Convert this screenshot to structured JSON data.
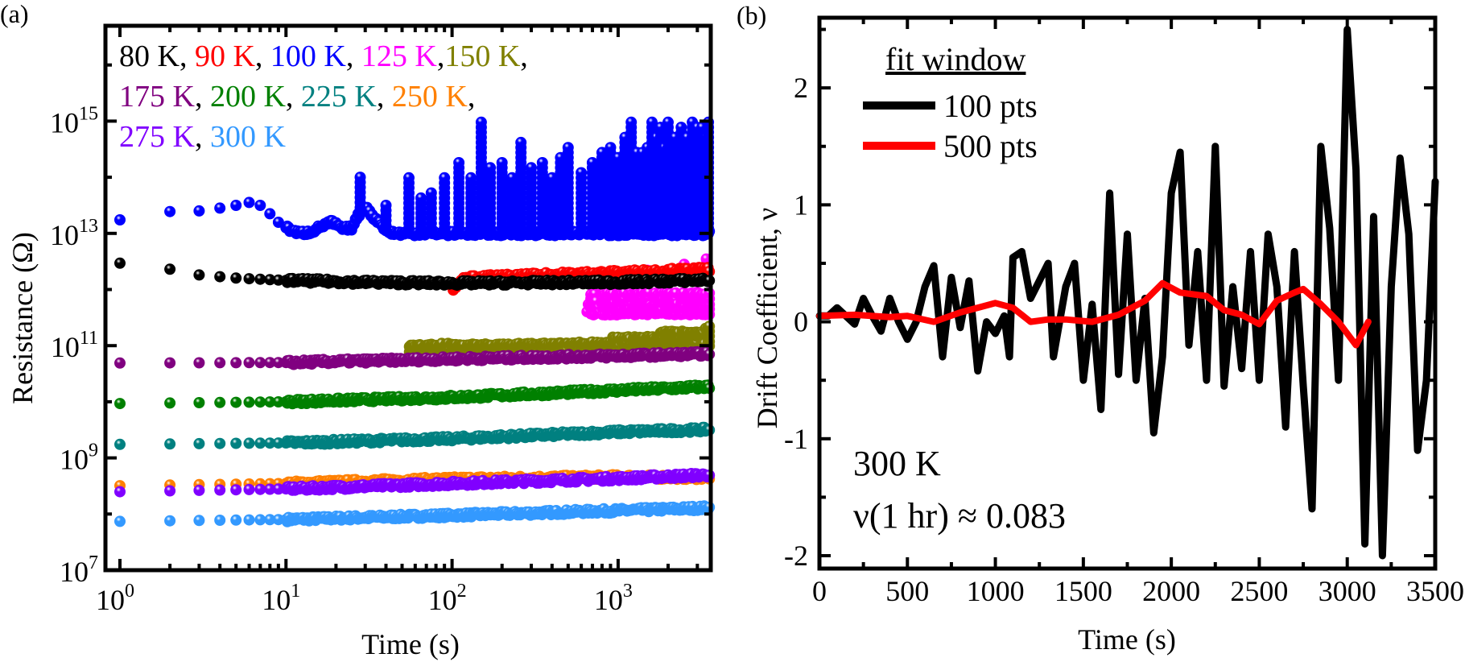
{
  "chart_data": [
    {
      "panel_label": "(a)",
      "type": "scatter",
      "xlabel": "Time (s)",
      "ylabel": "Resistance (Ω)",
      "xscale": "log",
      "yscale": "log",
      "xlim": [
        0.82,
        3630
      ],
      "ylim": [
        10000000.0,
        5e+16
      ],
      "xticks": [
        1,
        10,
        100,
        1000
      ],
      "yticks": [
        10000000.0,
        1000000000.0,
        100000000000.0,
        10000000000000.0,
        1000000000000000.0
      ],
      "grid": false,
      "legend_placement": "top-left",
      "legend_rows": [
        [
          "80 K",
          "90 K",
          "100 K",
          "125 K",
          "150 K"
        ],
        [
          "175 K",
          "200 K",
          "225 K",
          "250 K"
        ],
        [
          "275 K",
          "300 K"
        ]
      ],
      "legend_separator": ",",
      "series": [
        {
          "name": "80 K",
          "color": "#000000",
          "points": [
            [
              1,
              2950000000000.0
            ],
            [
              2,
              2300000000000.0
            ],
            [
              3,
              1820000000000.0
            ],
            [
              5,
              1600000000000.0
            ],
            [
              10,
              1450000000000.0
            ],
            [
              30,
              1350000000000.0
            ],
            [
              100,
              1300000000000.0
            ],
            [
              1000,
              1350000000000.0
            ],
            [
              3600,
              1480000000000.0
            ]
          ]
        },
        {
          "name": "90 K",
          "color": "#ff0000",
          "points": [
            [
              100,
              1000000000000.0
            ],
            [
              120,
              1600000000000.0
            ],
            [
              300,
              1800000000000.0
            ],
            [
              1000,
              2000000000000.0
            ],
            [
              3600,
              2300000000000.0
            ]
          ]
        },
        {
          "name": "100 K",
          "color": "#0000ff",
          "points": [
            [
              1,
              17400000000000.0
            ],
            [
              2,
              24500000000000.0
            ],
            [
              3,
              25100000000000.0
            ],
            [
              4,
              28200000000000.0
            ],
            [
              5,
              31600000000000.0
            ],
            [
              6,
              35500000000000.0
            ],
            [
              7,
              31600000000000.0
            ],
            [
              8,
              22400000000000.0
            ],
            [
              9,
              15800000000000.0
            ],
            [
              10,
              12600000000000.0
            ],
            [
              12,
              10000000000000.0
            ],
            [
              14,
              10500000000000.0
            ],
            [
              17,
              14100000000000.0
            ],
            [
              19,
              15800000000000.0
            ],
            [
              22,
              12000000000000.0
            ],
            [
              25,
              12600000000000.0
            ],
            [
              27,
              20000000000000.0
            ],
            [
              30,
              31600000000000.0
            ],
            [
              33,
              20000000000000.0
            ],
            [
              37,
              15800000000000.0
            ],
            [
              40,
              11200000000000.0
            ],
            [
              45,
              10000000000000.0
            ],
            [
              3600,
              10000000000000.0
            ]
          ],
          "spikes": [
            [
              28,
              100000000000000.0
            ],
            [
              40,
              31600000000000.0
            ],
            [
              55,
              100000000000000.0
            ],
            [
              65,
              50000000000000.0
            ],
            [
              75,
              63000000000000.0
            ],
            [
              90,
              100000000000000.0
            ],
            [
              110,
              200000000000000.0
            ],
            [
              130,
              100000000000000.0
            ],
            [
              150,
              1120000000000000.0
            ],
            [
              170,
              158000000000000.0
            ],
            [
              200,
              200000000000000.0
            ],
            [
              230,
              100000000000000.0
            ],
            [
              260,
              500000000000000.0
            ],
            [
              300,
              158000000000000.0
            ],
            [
              350,
              200000000000000.0
            ],
            [
              400,
              100000000000000.0
            ],
            [
              450,
              250000000000000.0
            ],
            [
              500,
              400000000000000.0
            ],
            [
              600,
              126000000000000.0
            ],
            [
              700,
              200000000000000.0
            ],
            [
              800,
              316000000000000.0
            ],
            [
              900,
              400000000000000.0
            ],
            [
              1000,
              250000000000000.0
            ],
            [
              1100,
              560000000000000.0
            ],
            [
              1200,
              1120000000000000.0
            ],
            [
              1300,
              316000000000000.0
            ],
            [
              1400,
              316000000000000.0
            ],
            [
              1500,
              400000000000000.0
            ],
            [
              1600,
              1120000000000000.0
            ],
            [
              1700,
              560000000000000.0
            ],
            [
              1800,
              790000000000000.0
            ],
            [
              1900,
              400000000000000.0
            ],
            [
              2000,
              1120000000000000.0
            ],
            [
              2200,
              560000000000000.0
            ],
            [
              2400,
              790000000000000.0
            ],
            [
              2600,
              560000000000000.0
            ],
            [
              2800,
              1120000000000000.0
            ],
            [
              3000,
              790000000000000.0
            ],
            [
              3200,
              790000000000000.0
            ],
            [
              3400,
              560000000000000.0
            ],
            [
              3500,
              1120000000000000.0
            ]
          ]
        },
        {
          "name": "125 K",
          "color": "#ff00ff",
          "points": [
            [
              650,
              370000000000.0
            ],
            [
              3600,
              370000000000.0
            ]
          ],
          "upper": [
            [
              650,
              910000000000.0
            ],
            [
              3600,
              910000000000.0
            ]
          ],
          "extra": [
            [
              800,
              1900000000000.0
            ],
            [
              1500,
              2200000000000.0
            ],
            [
              2500,
              2800000000000.0
            ],
            [
              3400,
              3500000000000.0
            ]
          ]
        },
        {
          "name": "150 K",
          "color": "#808000",
          "points": [
            [
              55,
              80000000000.0
            ],
            [
              3600,
              95000000000.0
            ]
          ],
          "upper": [
            [
              55,
              110000000000.0
            ],
            [
              500,
              110000000000.0
            ],
            [
              1000,
              140000000000.0
            ],
            [
              2000,
              180000000000.0
            ],
            [
              3600,
              220000000000.0
            ]
          ]
        },
        {
          "name": "175 K",
          "color": "#800080",
          "points": [
            [
              1,
              49000000000.0
            ],
            [
              10,
              50000000000.0
            ],
            [
              100,
              58000000000.0
            ],
            [
              1000,
              66000000000.0
            ],
            [
              3600,
              72000000000.0
            ]
          ]
        },
        {
          "name": "200 K",
          "color": "#008000",
          "points": [
            [
              1,
              9300000000.0
            ],
            [
              10,
              10000000000.0
            ],
            [
              100,
              12000000000.0
            ],
            [
              1000,
              16000000000.0
            ],
            [
              3600,
              18600000000.0
            ]
          ]
        },
        {
          "name": "225 K",
          "color": "#008080",
          "points": [
            [
              1,
              1740000000.0
            ],
            [
              10,
              1850000000.0
            ],
            [
              100,
              2200000000.0
            ],
            [
              1000,
              2900000000.0
            ],
            [
              3600,
              3200000000.0
            ]
          ]
        },
        {
          "name": "250 K",
          "color": "#ff8000",
          "points": [
            [
              1,
              320000000.0
            ],
            [
              10,
              350000000.0
            ],
            [
              100,
              420000000.0
            ],
            [
              1000,
              460000000.0
            ],
            [
              3600,
              450000000.0
            ]
          ]
        },
        {
          "name": "275 K",
          "color": "#8000ff",
          "points": [
            [
              1,
              250000000.0
            ],
            [
              10,
              280000000.0
            ],
            [
              100,
              350000000.0
            ],
            [
              1000,
              430000000.0
            ],
            [
              3600,
              500000000.0
            ]
          ]
        },
        {
          "name": "300 K",
          "color": "#3399ff",
          "points": [
            [
              1,
              74000000.0
            ],
            [
              10,
              80000000.0
            ],
            [
              100,
              95000000.0
            ],
            [
              1000,
              115000000.0
            ],
            [
              3600,
              129000000.0
            ]
          ]
        }
      ]
    },
    {
      "panel_label": "(b)",
      "type": "line",
      "xlabel": "Time (s)",
      "ylabel": "Drift Coefficient, ν",
      "xlim": [
        0,
        3500
      ],
      "ylim": [
        -2.11,
        2.6
      ],
      "xticks": [
        0,
        500,
        1000,
        1500,
        2000,
        2500,
        3000,
        3500
      ],
      "yticks": [
        -2,
        -1,
        0,
        1,
        2
      ],
      "grid": false,
      "legend_title": "fit window",
      "legend_placement": "top-left",
      "annotations": [
        "300 K",
        "ν(1 hr) ≈ 0.083"
      ],
      "series": [
        {
          "name": "100 pts",
          "color": "#000000",
          "x": [
            0,
            50,
            100,
            150,
            200,
            250,
            300,
            350,
            400,
            450,
            500,
            550,
            600,
            650,
            700,
            750,
            800,
            850,
            900,
            950,
            1000,
            1050,
            1080,
            1100,
            1150,
            1200,
            1250,
            1300,
            1330,
            1400,
            1450,
            1500,
            1550,
            1600,
            1650,
            1700,
            1750,
            1800,
            1850,
            1900,
            1950,
            2000,
            2050,
            2100,
            2150,
            2200,
            2250,
            2300,
            2350,
            2400,
            2450,
            2500,
            2550,
            2600,
            2650,
            2700,
            2750,
            2800,
            2850,
            2900,
            2950,
            3000,
            3050,
            3100,
            3150,
            3200,
            3250,
            3300,
            3350,
            3400,
            3450,
            3500
          ],
          "y": [
            0.05,
            0.05,
            0.12,
            0.05,
            -0.02,
            0.2,
            0.05,
            -0.08,
            0.2,
            0.0,
            -0.15,
            0.0,
            0.3,
            0.48,
            -0.3,
            0.38,
            -0.05,
            0.35,
            -0.42,
            0.0,
            -0.1,
            0.05,
            -0.3,
            0.55,
            0.6,
            0.2,
            0.35,
            0.5,
            -0.3,
            0.3,
            0.5,
            -0.5,
            0.15,
            -0.75,
            1.1,
            -0.45,
            0.75,
            -0.5,
            0.2,
            -0.95,
            -0.3,
            1.1,
            1.45,
            -0.2,
            0.6,
            -0.5,
            1.5,
            -0.55,
            0.3,
            -0.4,
            0.6,
            -0.5,
            0.75,
            0.3,
            -0.9,
            0.6,
            -0.55,
            -1.6,
            1.5,
            0.8,
            -0.5,
            2.5,
            1.3,
            -1.9,
            0.9,
            -2.0,
            0.3,
            1.4,
            0.75,
            -1.1,
            -0.5,
            1.2
          ]
        },
        {
          "name": "500 pts",
          "color": "#ff0000",
          "x": [
            0,
            200,
            400,
            500,
            650,
            800,
            1000,
            1100,
            1200,
            1300,
            1400,
            1550,
            1700,
            1850,
            1950,
            2050,
            2200,
            2300,
            2400,
            2500,
            2600,
            2700,
            2750,
            2850,
            2950,
            3050,
            3120
          ],
          "y": [
            0.05,
            0.06,
            0.04,
            0.05,
            0.0,
            0.08,
            0.16,
            0.12,
            0.0,
            0.02,
            0.02,
            0.0,
            0.06,
            0.18,
            0.33,
            0.25,
            0.22,
            0.1,
            0.06,
            -0.02,
            0.18,
            0.25,
            0.28,
            0.15,
            0.0,
            -0.2,
            0.0
          ]
        }
      ]
    }
  ]
}
